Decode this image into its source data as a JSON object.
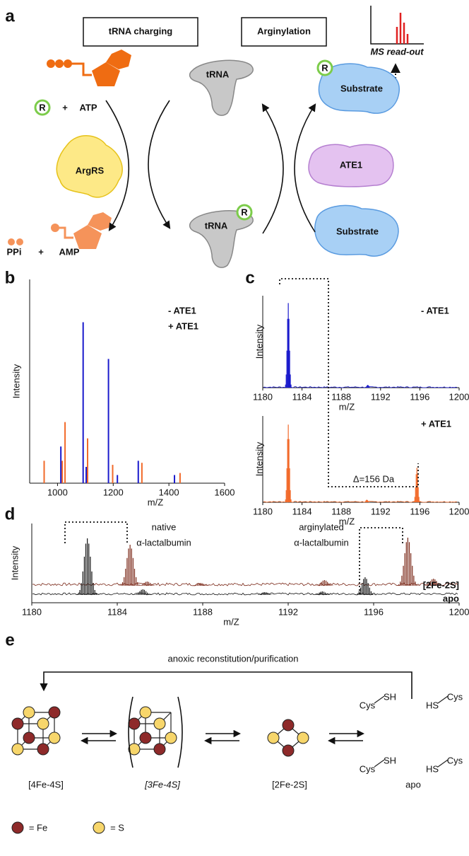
{
  "panel_a": {
    "label": "a",
    "box_left": "tRNA charging",
    "box_right": "Arginylation",
    "ms_readout": "MS read-out",
    "r": "R",
    "plus": "+",
    "atp": "ATP",
    "argrs": "ArgRS",
    "ppi": "PPi",
    "amp": "AMP",
    "trna": "tRNA",
    "substrate": "Substrate",
    "ate1": "ATE1"
  },
  "panel_b": {
    "label": "b",
    "xlabel": "m/Z",
    "ylabel": "Intensity",
    "xlim": [
      900,
      1600
    ],
    "xticks": [
      1000,
      1200,
      1400,
      1600
    ],
    "ylim": [
      0,
      100
    ],
    "series": [
      {
        "name": "-  ATE1",
        "color": "#1a1acc",
        "mz": [
          1012,
          1092,
          1103,
          1183,
          1215,
          1290,
          1420
        ],
        "values": [
          18,
          79,
          8,
          61,
          4,
          11,
          4
        ]
      },
      {
        "name": "+ ATE1",
        "color": "#f26a2a",
        "mz": [
          952,
          1017,
          1027,
          1108,
          1198,
          1303,
          1440
        ],
        "values": [
          11,
          11,
          30,
          22,
          9,
          10,
          5
        ]
      }
    ]
  },
  "panel_c": {
    "label": "c",
    "xlabel": "m/Z",
    "ylabel": "Intensity",
    "xlim": [
      1180,
      1200
    ],
    "xticks": [
      1180,
      1184,
      1188,
      1192,
      1196,
      1200
    ],
    "ylim": [
      0,
      100
    ],
    "annotation": "Δ=156 Da",
    "series": [
      {
        "name": "-  ATE1",
        "color": "#1a1acc",
        "mz": [
          1182.6,
          1190.7
        ],
        "values": [
          92,
          3
        ]
      },
      {
        "name": "+ ATE1",
        "color": "#f26a2a",
        "mz": [
          1182.6,
          1190.6,
          1195.7
        ],
        "values": [
          90,
          3,
          40
        ]
      }
    ]
  },
  "panel_d": {
    "label": "d",
    "xlabel": "m/Z",
    "ylabel": "Intensity",
    "xlim": [
      1180,
      1200
    ],
    "xticks": [
      1180,
      1184,
      1188,
      1192,
      1196,
      1200
    ],
    "ylim": [
      0,
      100
    ],
    "annotation_native": [
      "native",
      "α-lactalbumin"
    ],
    "annotation_arg": [
      "arginylated",
      "α-lactalbumin"
    ],
    "series": [
      {
        "name": "[2Fe-2S]",
        "color": "#7a2818",
        "mz": [
          1184.6,
          1185.4,
          1187.9,
          1193.7,
          1197.6,
          1198.8
        ],
        "values": [
          58,
          6,
          4,
          8,
          68,
          10
        ]
      },
      {
        "name": "apo",
        "color": "#111111",
        "mz": [
          1182.6,
          1185.2,
          1190.9,
          1193.6,
          1195.6
        ],
        "values": [
          80,
          8,
          4,
          5,
          25
        ]
      }
    ]
  },
  "panel_e": {
    "label": "e",
    "process": "anoxic reconstitution/purification",
    "states": [
      "[4Fe-4S]",
      "[3Fe-4S]",
      "[2Fe-2S]",
      "apo"
    ],
    "cys": "Cys",
    "sh": "SH",
    "hs": "HS",
    "legend": [
      "= Fe",
      "= S"
    ]
  }
}
